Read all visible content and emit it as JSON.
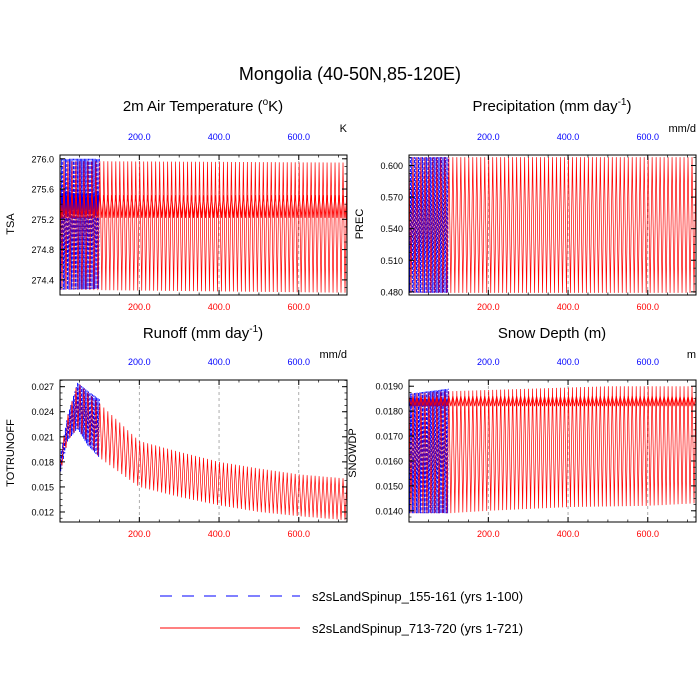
{
  "figure": {
    "title": "Mongolia (40-50N,85-120E)",
    "legend": [
      {
        "label": "s2sLandSpinup_155-161 (yrs 1-100)",
        "color": "#0000ff",
        "dash": "dashed"
      },
      {
        "label": "s2sLandSpinup_713-720 (yrs 1-721)",
        "color": "#ff0000",
        "dash": "solid"
      }
    ]
  },
  "chart_data": [
    {
      "type": "line",
      "title_main": "2m Air Temperature (",
      "title_sup": "o",
      "title_tail": "K)",
      "ylabel": "TSA",
      "units": "K",
      "xlim": [
        1,
        721
      ],
      "ylim": [
        274.2,
        276.05
      ],
      "yticks": [
        276.0,
        275.6,
        275.2,
        274.8,
        274.4
      ],
      "ytick_labels": [
        "276.0",
        "275.6",
        "275.2",
        "274.8",
        "274.4"
      ],
      "xticks": [
        200,
        400,
        600
      ],
      "xtick_labels": [
        "200.0",
        "400.0",
        "600.0"
      ],
      "gridlines_x": [
        200,
        400,
        600
      ],
      "series": [
        {
          "name": "s2sLandSpinup_155-161 (yrs 1-100)",
          "color": "#0000ff",
          "x_range": [
            1,
            100
          ],
          "env_hi_start": 276.0,
          "env_hi_end": 276.0,
          "env_lo_start": 274.27,
          "env_lo_end": 274.28,
          "band": [
            275.27,
            275.55
          ]
        },
        {
          "name": "s2sLandSpinup_713-720 (yrs 1-721)",
          "color": "#ff0000",
          "x_range": [
            1,
            721
          ],
          "env_hi_start": 275.97,
          "env_hi_end": 275.95,
          "env_lo_start": 274.27,
          "env_lo_end": 274.23,
          "band": [
            275.22,
            275.52
          ]
        }
      ]
    },
    {
      "type": "line",
      "title_main": "Precipitation (mm day",
      "title_sup": "-1",
      "title_tail": ")",
      "ylabel": "PREC",
      "units": "mm/d",
      "xlim": [
        1,
        721
      ],
      "ylim": [
        0.477,
        0.61
      ],
      "yticks": [
        0.6,
        0.57,
        0.54,
        0.51,
        0.48
      ],
      "ytick_labels": [
        "0.600",
        "0.570",
        "0.540",
        "0.510",
        "0.480"
      ],
      "xticks": [
        200,
        400,
        600
      ],
      "xtick_labels": [
        "200.0",
        "400.0",
        "600.0"
      ],
      "gridlines_x": [
        200,
        400,
        600
      ],
      "series": [
        {
          "name": "s2sLandSpinup_155-161 (yrs 1-100)",
          "color": "#0000ff",
          "x_range": [
            1,
            100
          ],
          "env_hi_start": 0.608,
          "env_hi_end": 0.608,
          "env_lo_start": 0.479,
          "env_lo_end": 0.479
        },
        {
          "name": "s2sLandSpinup_713-720 (yrs 1-721)",
          "color": "#ff0000",
          "x_range": [
            1,
            721
          ],
          "env_hi_start": 0.608,
          "env_hi_end": 0.608,
          "env_lo_start": 0.479,
          "env_lo_end": 0.479
        }
      ]
    },
    {
      "type": "line",
      "title_main": "Runoff (mm day",
      "title_sup": "-1",
      "title_tail": ")",
      "ylabel": "TOTRUNOFF",
      "units": "mm/d",
      "xlim": [
        1,
        721
      ],
      "ylim": [
        0.0108,
        0.0278
      ],
      "yticks": [
        0.027,
        0.024,
        0.021,
        0.018,
        0.015,
        0.012
      ],
      "ytick_labels": [
        "0.027",
        "0.024",
        "0.021",
        "0.018",
        "0.015",
        "0.012"
      ],
      "xticks": [
        200,
        400,
        600
      ],
      "xtick_labels": [
        "200.0",
        "400.0",
        "600.0"
      ],
      "gridlines_x": [
        200,
        400,
        600
      ],
      "series": [
        {
          "name": "s2sLandSpinup_155-161 (yrs 1-100)",
          "color": "#0000ff",
          "x_range": [
            1,
            100
          ],
          "hi": [
            [
              1,
              0.0185
            ],
            [
              20,
              0.0235
            ],
            [
              45,
              0.0275
            ],
            [
              70,
              0.0265
            ],
            [
              100,
              0.0255
            ]
          ],
          "lo": [
            [
              1,
              0.0165
            ],
            [
              20,
              0.0205
            ],
            [
              45,
              0.022
            ],
            [
              70,
              0.02
            ],
            [
              100,
              0.0185
            ]
          ]
        },
        {
          "name": "s2sLandSpinup_713-720 (yrs 1-721)",
          "color": "#ff0000",
          "x_range": [
            1,
            721
          ],
          "hi": [
            [
              1,
              0.0185
            ],
            [
              20,
              0.0235
            ],
            [
              45,
              0.0275
            ],
            [
              100,
              0.025
            ],
            [
              200,
              0.0205
            ],
            [
              300,
              0.0192
            ],
            [
              400,
              0.018
            ],
            [
              500,
              0.0172
            ],
            [
              600,
              0.0165
            ],
            [
              721,
              0.016
            ]
          ],
          "lo": [
            [
              1,
              0.0165
            ],
            [
              20,
              0.0205
            ],
            [
              45,
              0.022
            ],
            [
              100,
              0.0185
            ],
            [
              200,
              0.015
            ],
            [
              300,
              0.0138
            ],
            [
              400,
              0.0128
            ],
            [
              500,
              0.012
            ],
            [
              600,
              0.0115
            ],
            [
              721,
              0.011
            ]
          ]
        }
      ]
    },
    {
      "type": "line",
      "title_main": "Snow Depth (m)",
      "title_sup": "",
      "title_tail": "",
      "ylabel": "SNOWDP",
      "units": "m",
      "xlim": [
        1,
        721
      ],
      "ylim": [
        0.01355,
        0.01925
      ],
      "yticks": [
        0.019,
        0.018,
        0.017,
        0.016,
        0.015,
        0.014
      ],
      "ytick_labels": [
        "0.0190",
        "0.0180",
        "0.0170",
        "0.0160",
        "0.0150",
        "0.0140"
      ],
      "xticks": [
        200,
        400,
        600
      ],
      "xtick_labels": [
        "200.0",
        "400.0",
        "600.0"
      ],
      "gridlines_x": [
        200,
        400,
        600
      ],
      "series": [
        {
          "name": "s2sLandSpinup_155-161 (yrs 1-100)",
          "color": "#0000ff",
          "x_range": [
            1,
            100
          ],
          "hi": [
            [
              1,
              0.0187
            ],
            [
              100,
              0.0189
            ]
          ],
          "lo": [
            [
              1,
              0.0139
            ],
            [
              100,
              0.0139
            ]
          ],
          "band": [
            0.0182,
            0.0185
          ]
        },
        {
          "name": "s2sLandSpinup_713-720 (yrs 1-721)",
          "color": "#ff0000",
          "x_range": [
            1,
            721
          ],
          "hi": [
            [
              1,
              0.0187
            ],
            [
              100,
              0.0188
            ],
            [
              300,
              0.0189
            ],
            [
              500,
              0.019
            ],
            [
              721,
              0.019
            ]
          ],
          "lo": [
            [
              1,
              0.0139
            ],
            [
              100,
              0.0139
            ],
            [
              200,
              0.014
            ],
            [
              400,
              0.01415
            ],
            [
              600,
              0.0142
            ],
            [
              721,
              0.0143
            ]
          ],
          "band": [
            0.0182,
            0.0186
          ]
        }
      ]
    }
  ]
}
